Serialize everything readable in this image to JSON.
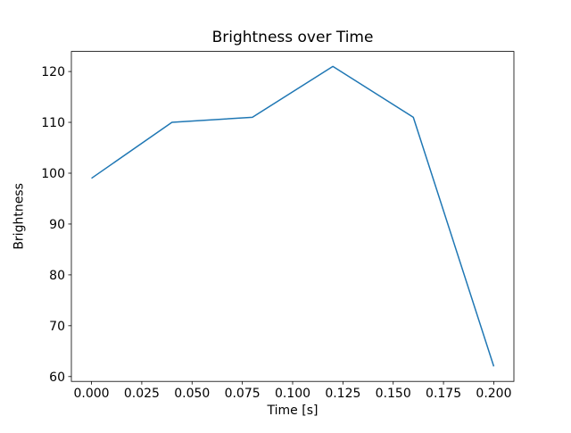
{
  "chart_data": {
    "type": "line",
    "title": "Brightness over Time",
    "xlabel": "Time [s]",
    "ylabel": "Brightness",
    "x": [
      0.0,
      0.04,
      0.08,
      0.12,
      0.16,
      0.2
    ],
    "y": [
      99,
      110,
      111,
      121,
      111,
      62
    ],
    "series": [
      {
        "name": "brightness",
        "x": [
          0.0,
          0.04,
          0.08,
          0.12,
          0.16,
          0.2
        ],
        "values": [
          99,
          110,
          111,
          121,
          111,
          62
        ]
      }
    ],
    "xlim": [
      -0.01,
      0.21
    ],
    "ylim": [
      59.05,
      123.95
    ],
    "xticks": [
      0.0,
      0.025,
      0.05,
      0.075,
      0.1,
      0.125,
      0.15,
      0.175,
      0.2
    ],
    "xtick_labels": [
      "0.000",
      "0.025",
      "0.050",
      "0.075",
      "0.100",
      "0.125",
      "0.150",
      "0.175",
      "0.200"
    ],
    "yticks": [
      60,
      70,
      80,
      90,
      100,
      110,
      120
    ],
    "ytick_labels": [
      "60",
      "70",
      "80",
      "90",
      "100",
      "110",
      "120"
    ],
    "line_color": "#1f77b4",
    "spine_color": "#000000",
    "background_color": "#ffffff",
    "grid": false,
    "legend_position": "none"
  }
}
